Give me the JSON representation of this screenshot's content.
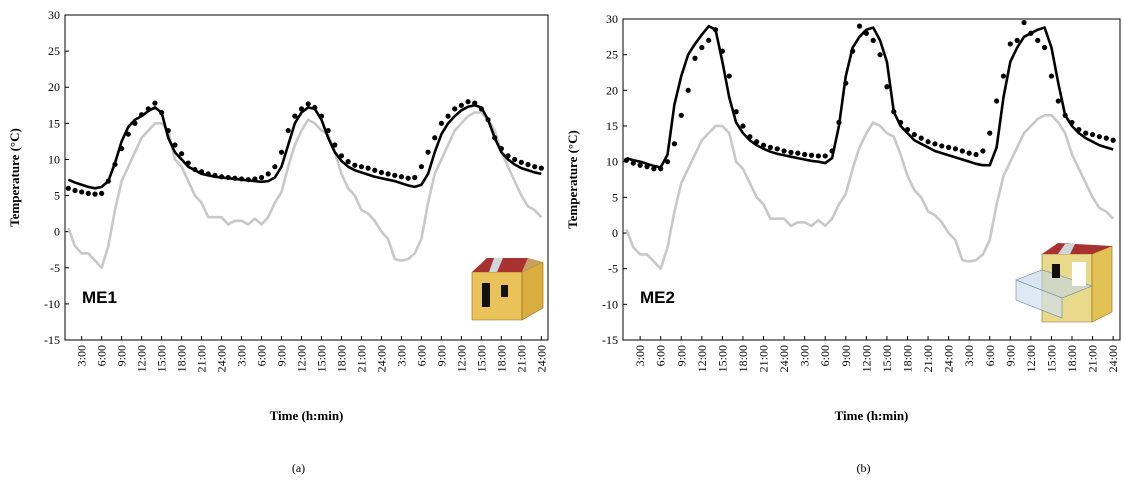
{
  "chart_data": [
    {
      "type": "line",
      "annotation": "ME1",
      "caption": "(a)",
      "xlabel": "Time (h:min)",
      "ylabel": "Temperature (°C)",
      "x": [
        1,
        2,
        3,
        4,
        5,
        6,
        7,
        8,
        9,
        10,
        11,
        12,
        13,
        14,
        15,
        16,
        17,
        18,
        19,
        20,
        21,
        22,
        23,
        24,
        25,
        26,
        27,
        28,
        29,
        30,
        31,
        32,
        33,
        34,
        35,
        36,
        37,
        38,
        39,
        40,
        41,
        42,
        43,
        44,
        45,
        46,
        47,
        48,
        49,
        50,
        51,
        52,
        53,
        54,
        55,
        56,
        57,
        58,
        59,
        60,
        61,
        62,
        63,
        64,
        65,
        66,
        67,
        68,
        69,
        70,
        71,
        72
      ],
      "series": [
        {
          "color": "#c8c8c8",
          "style": "line",
          "values": [
            0.5,
            -2,
            -3,
            -3,
            -4,
            -5,
            -2,
            3,
            7,
            9,
            11,
            13,
            14,
            15,
            15,
            14,
            10,
            9,
            7,
            5,
            4,
            2,
            2,
            2,
            1,
            1.5,
            1.5,
            1,
            1.8,
            1,
            2,
            4,
            5.5,
            9,
            12,
            14,
            15.5,
            15,
            14,
            13.5,
            11,
            8,
            6,
            5,
            3,
            2.5,
            1.5,
            0,
            -1,
            -3.8,
            -4,
            -3.8,
            -3,
            -1,
            4,
            8,
            10,
            12,
            14,
            15,
            16,
            16.5,
            16.5,
            15.5,
            14,
            11,
            9,
            7,
            5,
            3.5,
            3,
            2
          ]
        },
        {
          "color": "#000000",
          "style": "line",
          "values": [
            7.2,
            6.8,
            6.5,
            6.2,
            6,
            6.2,
            7,
            9.5,
            12.5,
            14.5,
            15.5,
            16,
            16.7,
            17.2,
            16.5,
            13,
            11,
            10,
            9,
            8.5,
            8,
            7.8,
            7.6,
            7.5,
            7.4,
            7.3,
            7.2,
            7.1,
            7,
            6.9,
            7,
            7.5,
            9,
            12,
            15,
            16.5,
            17.2,
            17,
            15.5,
            13,
            11,
            9.8,
            9,
            8.5,
            8.2,
            7.9,
            7.6,
            7.4,
            7.2,
            7,
            6.7,
            6.4,
            6.2,
            6.5,
            8,
            11,
            13.5,
            15,
            16,
            16.8,
            17.3,
            17.5,
            17.2,
            15.5,
            13,
            11,
            10,
            9.3,
            8.8,
            8.5,
            8.2,
            8
          ]
        },
        {
          "color": "#000000",
          "style": "dots",
          "values": [
            6,
            5.7,
            5.5,
            5.3,
            5.2,
            5.3,
            7,
            9.3,
            11.5,
            13.5,
            15,
            16.2,
            17,
            17.8,
            16.5,
            14,
            12,
            10.8,
            9.5,
            8.6,
            8.3,
            8,
            7.8,
            7.6,
            7.5,
            7.4,
            7.3,
            7.2,
            7.3,
            7.5,
            8,
            9,
            11,
            14,
            16,
            17,
            17.7,
            17.2,
            16,
            14,
            12,
            10.5,
            9.7,
            9.2,
            9,
            8.8,
            8.5,
            8.2,
            8,
            7.8,
            7.6,
            7.4,
            7.5,
            9,
            11,
            13,
            15,
            16,
            17,
            17.5,
            18,
            17.8,
            17,
            15.5,
            13,
            11.5,
            10.5,
            10,
            9.6,
            9.3,
            9,
            8.8
          ]
        }
      ],
      "xlim": [
        0.5,
        73
      ],
      "ylim": [
        -15,
        30
      ],
      "yticks": [
        -15,
        -10,
        -5,
        0,
        5,
        10,
        15,
        20,
        25,
        30
      ],
      "xticks": [
        {
          "value": 3,
          "label": "3:00"
        },
        {
          "value": 6,
          "label": "6:00"
        },
        {
          "value": 9,
          "label": "9:00"
        },
        {
          "value": 12,
          "label": "12:00"
        },
        {
          "value": 15,
          "label": "15:00"
        },
        {
          "value": 18,
          "label": "18:00"
        },
        {
          "value": 21,
          "label": "21:00"
        },
        {
          "value": 24,
          "label": "24:00"
        },
        {
          "value": 27,
          "label": "3:00"
        },
        {
          "value": 30,
          "label": "6:00"
        },
        {
          "value": 33,
          "label": "9:00"
        },
        {
          "value": 36,
          "label": "12:00"
        },
        {
          "value": 39,
          "label": "15:00"
        },
        {
          "value": 42,
          "label": "18:00"
        },
        {
          "value": 45,
          "label": "21:00"
        },
        {
          "value": 48,
          "label": "24:00"
        },
        {
          "value": 51,
          "label": "3:00"
        },
        {
          "value": 54,
          "label": "6:00"
        },
        {
          "value": 57,
          "label": "9:00"
        },
        {
          "value": 60,
          "label": "12:00"
        },
        {
          "value": 63,
          "label": "15:00"
        },
        {
          "value": 66,
          "label": "18:00"
        },
        {
          "value": 69,
          "label": "21:00"
        },
        {
          "value": 72,
          "label": "24:00"
        }
      ]
    },
    {
      "type": "line",
      "annotation": "ME2",
      "caption": "(b)",
      "xlabel": "Time (h:min)",
      "ylabel": "Temperature (°C)",
      "x": [
        1,
        2,
        3,
        4,
        5,
        6,
        7,
        8,
        9,
        10,
        11,
        12,
        13,
        14,
        15,
        16,
        17,
        18,
        19,
        20,
        21,
        22,
        23,
        24,
        25,
        26,
        27,
        28,
        29,
        30,
        31,
        32,
        33,
        34,
        35,
        36,
        37,
        38,
        39,
        40,
        41,
        42,
        43,
        44,
        45,
        46,
        47,
        48,
        49,
        50,
        51,
        52,
        53,
        54,
        55,
        56,
        57,
        58,
        59,
        60,
        61,
        62,
        63,
        64,
        65,
        66,
        67,
        68,
        69,
        70,
        71,
        72
      ],
      "series": [
        {
          "color": "#c8c8c8",
          "style": "line",
          "values": [
            0.5,
            -2,
            -3,
            -3,
            -4,
            -5,
            -2,
            3,
            7,
            9,
            11,
            13,
            14,
            15,
            15,
            14,
            10,
            9,
            7,
            5,
            4,
            2,
            2,
            2,
            1,
            1.5,
            1.5,
            1,
            1.8,
            1,
            2,
            4,
            5.5,
            9,
            12,
            14,
            15.5,
            15,
            14,
            13.5,
            11,
            8,
            6,
            5,
            3,
            2.5,
            1.5,
            0,
            -1,
            -3.8,
            -4,
            -3.8,
            -3,
            -1,
            4,
            8,
            10,
            12,
            14,
            15,
            16,
            16.5,
            16.5,
            15.5,
            14,
            11,
            9,
            7,
            5,
            3.5,
            3,
            2
          ]
        },
        {
          "color": "#000000",
          "style": "line",
          "values": [
            10.5,
            10.2,
            10,
            9.7,
            9.4,
            9.2,
            11,
            18,
            22,
            25,
            26.5,
            27.8,
            29,
            28.5,
            24,
            19,
            15.5,
            14,
            13,
            12.3,
            11.8,
            11.4,
            11.1,
            10.9,
            10.7,
            10.5,
            10.3,
            10.1,
            10,
            9.8,
            10.5,
            15,
            22,
            26,
            27.5,
            28.5,
            28.8,
            27,
            24,
            17,
            15,
            14,
            13,
            12.5,
            12,
            11.5,
            11.2,
            10.9,
            10.6,
            10.3,
            10,
            9.7,
            9.5,
            9.5,
            12,
            19,
            24,
            26,
            27.5,
            28,
            28.5,
            28.8,
            26,
            21,
            16.5,
            15,
            14,
            13.3,
            12.8,
            12.3,
            12,
            11.7
          ]
        },
        {
          "color": "#000000",
          "style": "dots",
          "values": [
            10.2,
            9.8,
            9.5,
            9.3,
            9,
            9,
            10,
            12.5,
            16.5,
            20,
            24.5,
            26,
            27,
            28.5,
            25.5,
            22,
            17,
            15,
            13.5,
            12.8,
            12.3,
            12,
            11.8,
            11.5,
            11.3,
            11.2,
            11,
            10.9,
            10.8,
            10.8,
            11.5,
            15.5,
            21,
            25.5,
            29,
            28,
            27,
            25,
            20.5,
            17,
            15.5,
            14.5,
            13.8,
            13.3,
            12.8,
            12.5,
            12.2,
            12,
            11.8,
            11.5,
            11.2,
            11,
            11.5,
            14,
            18.5,
            22,
            26.5,
            27,
            29.5,
            28,
            27,
            26,
            22,
            18.5,
            16.5,
            15.5,
            14.5,
            14,
            13.8,
            13.5,
            13.3,
            13
          ]
        }
      ],
      "xlim": [
        0.5,
        73
      ],
      "ylim": [
        -15,
        30
      ],
      "yticks": [
        -15,
        -10,
        -5,
        0,
        5,
        10,
        15,
        20,
        25,
        30
      ],
      "xticks": [
        {
          "value": 3,
          "label": "3:00"
        },
        {
          "value": 6,
          "label": "6:00"
        },
        {
          "value": 9,
          "label": "9:00"
        },
        {
          "value": 12,
          "label": "12:00"
        },
        {
          "value": 15,
          "label": "15:00"
        },
        {
          "value": 18,
          "label": "18:00"
        },
        {
          "value": 21,
          "label": "21:00"
        },
        {
          "value": 24,
          "label": "24:00"
        },
        {
          "value": 27,
          "label": "3:00"
        },
        {
          "value": 30,
          "label": "6:00"
        },
        {
          "value": 33,
          "label": "9:00"
        },
        {
          "value": 36,
          "label": "12:00"
        },
        {
          "value": 39,
          "label": "15:00"
        },
        {
          "value": 42,
          "label": "18:00"
        },
        {
          "value": 45,
          "label": "21:00"
        },
        {
          "value": 48,
          "label": "24:00"
        },
        {
          "value": 51,
          "label": "3:00"
        },
        {
          "value": 54,
          "label": "6:00"
        },
        {
          "value": 57,
          "label": "9:00"
        },
        {
          "value": 60,
          "label": "12:00"
        },
        {
          "value": 63,
          "label": "15:00"
        },
        {
          "value": 66,
          "label": "18:00"
        },
        {
          "value": 69,
          "label": "21:00"
        },
        {
          "value": 72,
          "label": "24:00"
        }
      ]
    }
  ]
}
